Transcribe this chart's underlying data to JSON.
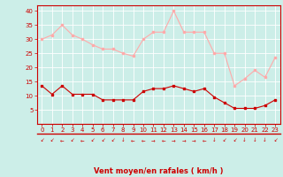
{
  "x": [
    0,
    1,
    2,
    3,
    4,
    5,
    6,
    7,
    8,
    9,
    10,
    11,
    12,
    13,
    14,
    15,
    16,
    17,
    18,
    19,
    20,
    21,
    22,
    23
  ],
  "rafales": [
    30,
    31.5,
    35,
    31.5,
    30,
    28,
    26.5,
    26.5,
    25,
    24,
    30,
    32.5,
    32.5,
    40,
    32.5,
    32.5,
    32.5,
    25,
    25,
    13.5,
    16,
    19,
    16.5,
    23.5
  ],
  "moyen": [
    13.5,
    10.5,
    13.5,
    10.5,
    10.5,
    10.5,
    8.5,
    8.5,
    8.5,
    8.5,
    11.5,
    12.5,
    12.5,
    13.5,
    12.5,
    11.5,
    12.5,
    9.5,
    7.5,
    5.5,
    5.5,
    5.5,
    6.5,
    8.5
  ],
  "line_color_rafales": "#ffaaaa",
  "line_color_moyen": "#cc0000",
  "bg_color": "#cceee8",
  "grid_color": "#ffffff",
  "xlabel": "Vent moyen/en rafales ( km/h )",
  "xlabel_color": "#cc0000",
  "ylim": [
    0,
    42
  ],
  "yticks": [
    5,
    10,
    15,
    20,
    25,
    30,
    35,
    40
  ],
  "xticks": [
    0,
    1,
    2,
    3,
    4,
    5,
    6,
    7,
    8,
    9,
    10,
    11,
    12,
    13,
    14,
    15,
    16,
    17,
    18,
    19,
    20,
    21,
    22,
    23
  ],
  "wind_dirs": [
    "↙",
    "↙",
    "←",
    "↙",
    "←",
    "↙",
    "↙",
    "↙",
    "↓",
    "←",
    "←",
    "→",
    "←",
    "→",
    "→",
    "→",
    "←",
    "↓",
    "↙",
    "↙",
    "↓",
    "↓",
    "↓",
    "↙"
  ]
}
